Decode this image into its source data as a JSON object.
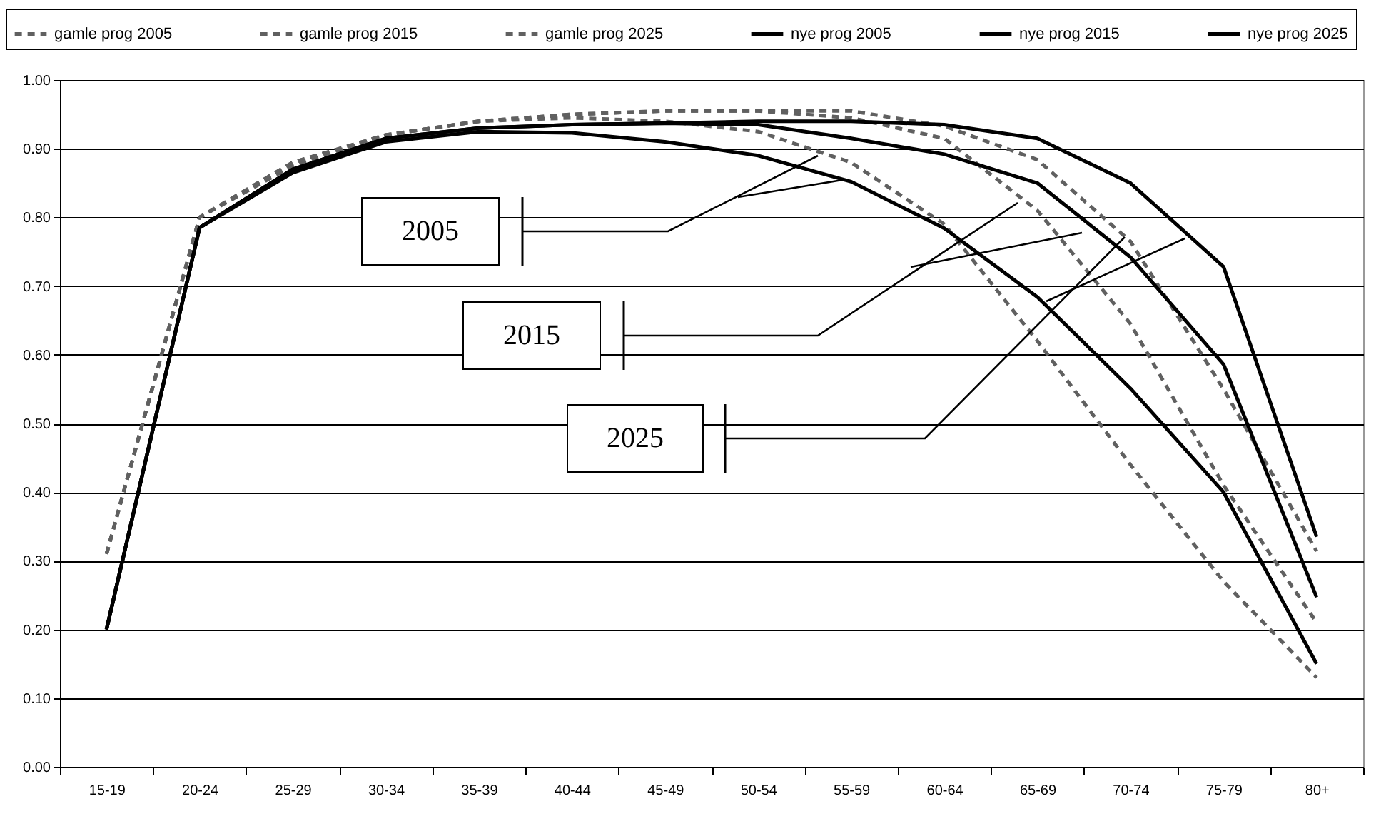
{
  "chart_data": {
    "type": "line",
    "categories": [
      "15-19",
      "20-24",
      "25-29",
      "30-34",
      "35-39",
      "40-44",
      "45-49",
      "50-54",
      "55-59",
      "60-64",
      "65-69",
      "70-74",
      "75-79",
      "80+"
    ],
    "series": [
      {
        "name": "gamle prog 2005",
        "color": "#606060",
        "line_style": "dashed",
        "values": [
          0.31,
          0.8,
          0.875,
          0.92,
          0.94,
          0.945,
          0.94,
          0.925,
          0.88,
          0.79,
          0.62,
          0.44,
          0.27,
          0.13
        ]
      },
      {
        "name": "gamle prog 2015",
        "color": "#606060",
        "line_style": "dashed",
        "values": [
          0.31,
          0.8,
          0.88,
          0.92,
          0.94,
          0.95,
          0.955,
          0.955,
          0.945,
          0.915,
          0.81,
          0.645,
          0.41,
          0.21
        ]
      },
      {
        "name": "gamle prog 2025",
        "color": "#606060",
        "line_style": "dashed",
        "values": [
          0.31,
          0.8,
          0.88,
          0.92,
          0.94,
          0.95,
          0.955,
          0.955,
          0.955,
          0.933,
          0.884,
          0.765,
          0.55,
          0.314
        ]
      },
      {
        "name": "nye prog 2005",
        "color": "#000000",
        "line_style": "solid",
        "values": [
          0.2,
          0.785,
          0.865,
          0.91,
          0.925,
          0.923,
          0.91,
          0.89,
          0.852,
          0.784,
          0.684,
          0.551,
          0.4,
          0.15
        ]
      },
      {
        "name": "nye prog 2015",
        "color": "#000000",
        "line_style": "solid",
        "values": [
          0.2,
          0.785,
          0.87,
          0.915,
          0.93,
          0.935,
          0.937,
          0.935,
          0.915,
          0.892,
          0.85,
          0.742,
          0.586,
          0.247
        ]
      },
      {
        "name": "nye prog 2025",
        "color": "#000000",
        "line_style": "solid",
        "values": [
          0.2,
          0.785,
          0.87,
          0.915,
          0.93,
          0.935,
          0.937,
          0.94,
          0.94,
          0.935,
          0.915,
          0.85,
          0.728,
          0.335
        ]
      }
    ],
    "ylim": [
      0,
      1
    ],
    "yticks": [
      {
        "value": 0,
        "label": "0.00"
      },
      {
        "value": 0.1,
        "label": "0.10"
      },
      {
        "value": 0.2,
        "label": "0.20"
      },
      {
        "value": 0.3,
        "label": "0.30"
      },
      {
        "value": 0.4,
        "label": "0.40"
      },
      {
        "value": 0.5,
        "label": "0.50"
      },
      {
        "value": 0.6,
        "label": "0.60"
      },
      {
        "value": 0.7,
        "label": "0.70"
      },
      {
        "value": 0.8,
        "label": "0.80"
      },
      {
        "value": 0.9,
        "label": "0.90"
      },
      {
        "value": 1,
        "label": "1.00"
      }
    ],
    "grid": "y",
    "legend": "top",
    "marker": "none",
    "annotations": [
      "2005",
      "2015",
      "2025"
    ]
  }
}
